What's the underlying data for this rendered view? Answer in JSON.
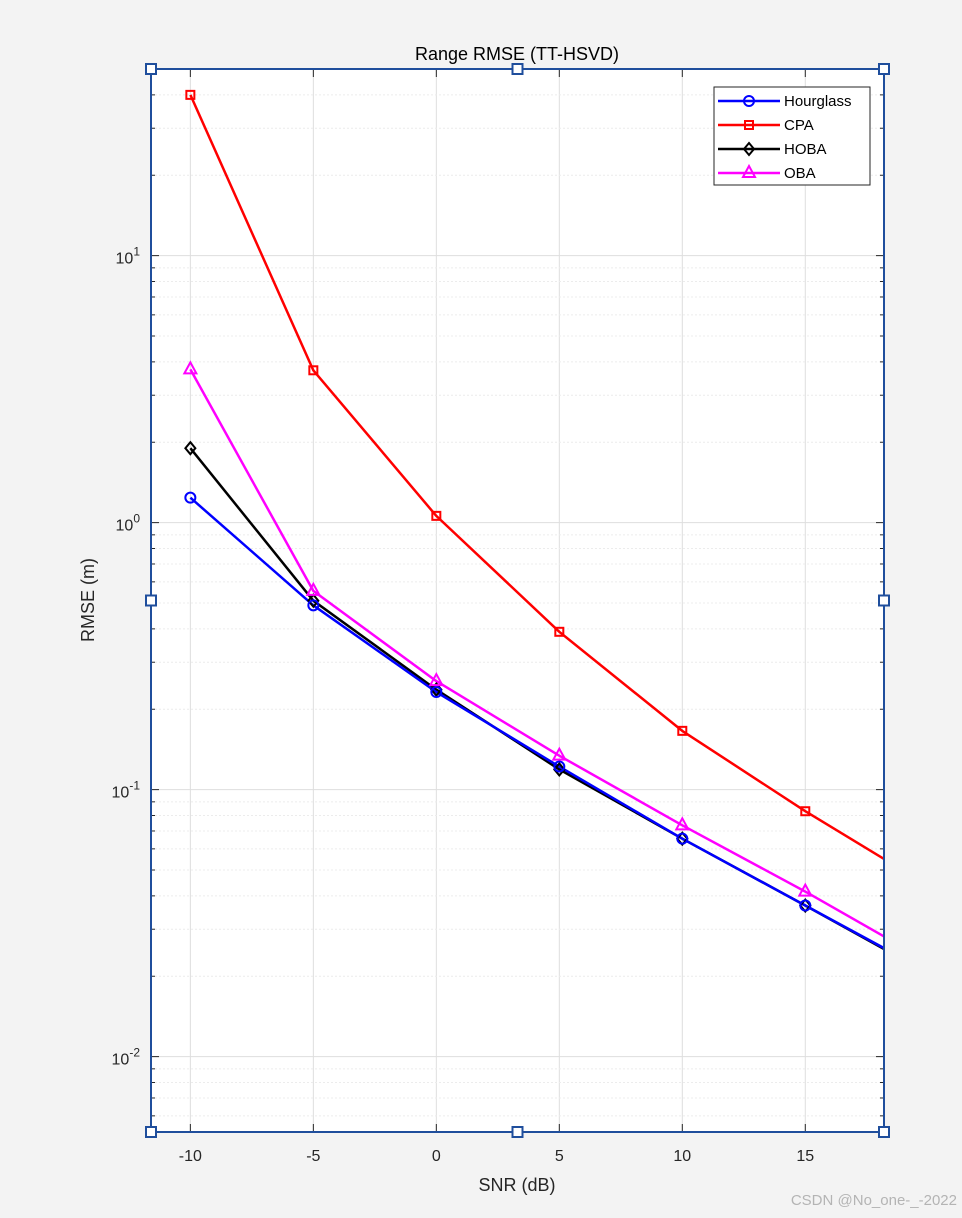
{
  "chart_data": {
    "type": "line",
    "title": "Range RMSE (TT-HSVD)",
    "xlabel": "SNR (dB)",
    "ylabel": "RMSE (m)",
    "y_scale": "log",
    "grid": true,
    "legend_position": "top-right",
    "x": [
      -10,
      -5,
      0,
      5,
      10,
      15,
      18.2
    ],
    "xlim": [
      -11.6,
      18.2
    ],
    "ylim": [
      0.00522,
      50
    ],
    "x_ticks": [
      -10,
      -5,
      0,
      5,
      10,
      15
    ],
    "x_tick_labels": [
      "-10",
      "-5",
      "0",
      "5",
      "10",
      "15"
    ],
    "y_ticks": [
      {
        "value": 10,
        "base": "10",
        "exp": "1"
      },
      {
        "value": 1,
        "base": "10",
        "exp": "0"
      },
      {
        "value": 0.1,
        "base": "10",
        "exp": "-1"
      },
      {
        "value": 0.01,
        "base": "10",
        "exp": "-2"
      }
    ],
    "series": [
      {
        "name": "Hourglass",
        "color": "#0000ff",
        "marker": "circle",
        "values": [
          1.24,
          0.49,
          0.232,
          0.122,
          0.0655,
          0.0368,
          0.0255
        ]
      },
      {
        "name": "CPA",
        "color": "#ff0000",
        "marker": "square",
        "values": [
          40,
          3.72,
          1.06,
          0.39,
          0.166,
          0.083,
          0.055
        ]
      },
      {
        "name": "HOBA",
        "color": "#000000",
        "marker": "diamond",
        "values": [
          1.9,
          0.51,
          0.237,
          0.119,
          0.0655,
          0.0368,
          0.0253
        ]
      },
      {
        "name": "OBA",
        "color": "#ff00ff",
        "marker": "triangle",
        "values": [
          3.75,
          0.555,
          0.255,
          0.134,
          0.0735,
          0.0415,
          0.0282
        ]
      }
    ]
  },
  "watermark": "CSDN @No_one-_-2022",
  "colors": {
    "axes_border": "#1f4e9c",
    "grid": "#dedede",
    "background": "#f3f3f3"
  }
}
